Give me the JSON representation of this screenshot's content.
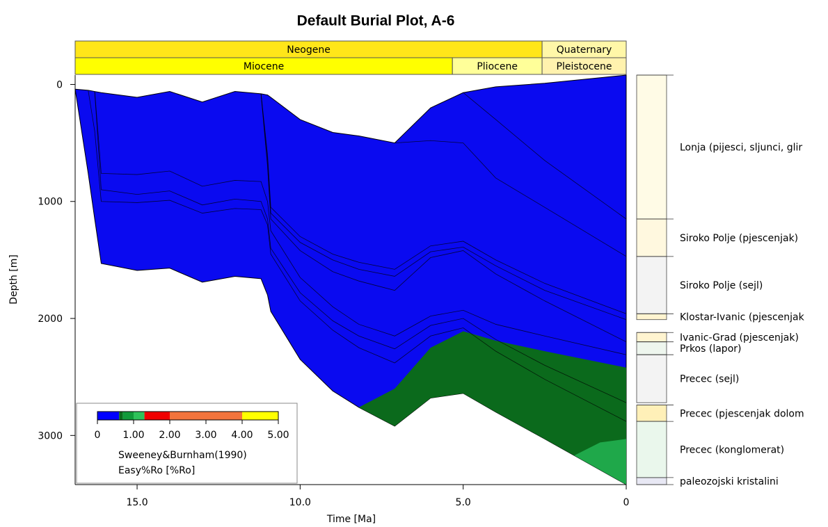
{
  "chart_data": {
    "type": "burial",
    "title": "Default Burial Plot, A-6",
    "xlabel": "Time [Ma]",
    "ylabel": "Depth [m]",
    "xlim": [
      16.9,
      0
    ],
    "xticks": [
      {
        "value": 15,
        "label": "15.0"
      },
      {
        "value": 10,
        "label": "10.0"
      },
      {
        "value": 5,
        "label": "5.0"
      },
      0
    ],
    "ylim": [
      -80,
      3420
    ],
    "yticks": [
      0,
      1000,
      2000,
      3000
    ],
    "eras": [
      {
        "name": "Neogene",
        "start": 16.9,
        "end": 2.58,
        "color": "#ffe619"
      },
      {
        "name": "Quaternary",
        "start": 2.58,
        "end": 0,
        "color": "#fff7a8"
      }
    ],
    "epochs": [
      {
        "name": "Miocene",
        "start": 16.9,
        "end": 5.33,
        "color": "#ffff00"
      },
      {
        "name": "Pliocene",
        "start": 5.33,
        "end": 2.58,
        "color": "#ffff99"
      },
      {
        "name": "Pleistocene",
        "start": 2.58,
        "end": 0,
        "color": "#fff2ae"
      }
    ],
    "x": [
      16.9,
      16.5,
      16.3,
      16.1,
      15.0,
      14.0,
      13.0,
      12.0,
      11.2,
      11.0,
      10.9,
      10.0,
      9.0,
      8.2,
      7.1,
      6.0,
      5.0,
      4.0,
      2.5,
      0
    ],
    "fill_color": "#0a0af0",
    "horizon_color": "#000000",
    "surface": [
      40,
      50,
      60,
      70,
      110,
      60,
      150,
      60,
      80,
      90,
      110,
      300,
      410,
      440,
      500,
      200,
      70,
      20,
      -10,
      -80
    ],
    "basement": [
      40,
      760,
      1150,
      1530,
      1590,
      1570,
      1690,
      1640,
      1660,
      1800,
      1940,
      2350,
      2620,
      2760,
      2920,
      2680,
      2640,
      2800,
      3030,
      3420
    ],
    "horizons": [
      {
        "values": [
          null,
          null,
          null,
          null,
          null,
          null,
          null,
          null,
          null,
          null,
          null,
          null,
          null,
          null,
          null,
          null,
          70,
          300,
          650,
          1150
        ]
      },
      {
        "values": [
          null,
          null,
          null,
          null,
          null,
          null,
          null,
          null,
          null,
          null,
          null,
          null,
          null,
          null,
          500,
          480,
          500,
          800,
          1050,
          1470
        ]
      },
      {
        "values": [
          null,
          null,
          null,
          null,
          null,
          null,
          null,
          null,
          80,
          600,
          1050,
          1300,
          1450,
          1520,
          1580,
          1380,
          1340,
          1500,
          1700,
          1960
        ]
      },
      {
        "values": [
          null,
          null,
          null,
          null,
          null,
          null,
          null,
          null,
          80,
          650,
          1100,
          1350,
          1500,
          1580,
          1640,
          1430,
          1390,
          1550,
          1760,
          2010
        ]
      },
      {
        "values": [
          null,
          null,
          null,
          null,
          null,
          null,
          null,
          null,
          80,
          700,
          1150,
          1420,
          1600,
          1680,
          1760,
          1480,
          1420,
          1620,
          1850,
          2200
        ]
      },
      {
        "values": [
          null,
          null,
          60,
          760,
          770,
          740,
          870,
          820,
          830,
          1000,
          1250,
          1650,
          1900,
          2050,
          2150,
          1980,
          1930,
          2050,
          2150,
          2310
        ]
      },
      {
        "values": [
          null,
          null,
          60,
          900,
          940,
          910,
          1030,
          980,
          1000,
          1150,
          1400,
          1780,
          2020,
          2150,
          2260,
          2060,
          2000,
          2180,
          2400,
          2720
        ]
      },
      {
        "values": [
          null,
          50,
          400,
          1000,
          1010,
          990,
          1100,
          1060,
          1070,
          1200,
          1450,
          1850,
          2100,
          2250,
          2380,
          2150,
          2080,
          2280,
          2520,
          2880
        ]
      }
    ],
    "zones": [
      {
        "color": "#0b6a1c",
        "x": [
          8.2,
          7.1,
          6.0,
          5.0,
          4.0,
          2.5,
          0
        ],
        "depth": [
          2760,
          2600,
          2250,
          2110,
          2190,
          2280,
          2420
        ]
      },
      {
        "color": "#1fa84a",
        "x": [
          1.8,
          0.8,
          0
        ],
        "depth": [
          3200,
          3060,
          3030
        ]
      }
    ],
    "formations": [
      {
        "name": "Lonja (pijesci, sljunci, glir",
        "top": -80,
        "base": 1150,
        "color": "#fffbe6"
      },
      {
        "name": "Siroko Polje (pjescenjak)",
        "top": 1150,
        "base": 1470,
        "color": "#fff8df"
      },
      {
        "name": "Siroko Polje (sejl)",
        "top": 1470,
        "base": 1960,
        "color": "#f3f3f3"
      },
      {
        "name": "Klostar-Ivanic (pjescenjak",
        "top": 1960,
        "base": 2010,
        "color": "#fff4d0"
      },
      {
        "name": "Ivanic-Grad (pjescenjak)",
        "top": 2120,
        "base": 2200,
        "color": "#fff4d0"
      },
      {
        "name": "Prkos (lapor)",
        "top": 2200,
        "base": 2310,
        "color": "#eef6ee"
      },
      {
        "name": "Precec (sejl)",
        "top": 2310,
        "base": 2720,
        "color": "#f3f3f3"
      },
      {
        "name": "Precec (pjescenjak dolom",
        "top": 2740,
        "base": 2880,
        "color": "#fff0b8"
      },
      {
        "name": "Precec (konglomerat)",
        "top": 2880,
        "base": 3360,
        "color": "#eaf7ec"
      },
      {
        "name": "paleozojski kristalini",
        "top": 3360,
        "base": 3420,
        "color": "#e8e8f4"
      }
    ],
    "colorbar": {
      "label": "Sweeney&Burnham(1990)",
      "sublabel": "Easy%Ro [%Ro]",
      "lim": [
        0,
        5
      ],
      "bounds": [
        0,
        0.6,
        0.7,
        1.0,
        1.3,
        2.0,
        4.0,
        5.0
      ],
      "colors": [
        "#0000ff",
        "#0b6a1c",
        "#119a3a",
        "#2ec25a",
        "#f00000",
        "#f2743c",
        "#ffff00"
      ],
      "ticks": [
        0,
        {
          "value": 1,
          "label": "1.00"
        },
        {
          "value": 2,
          "label": "2.00"
        },
        {
          "value": 3,
          "label": "3.00"
        },
        {
          "value": 4,
          "label": "4.00"
        },
        {
          "value": 5,
          "label": "5.00"
        }
      ]
    }
  }
}
